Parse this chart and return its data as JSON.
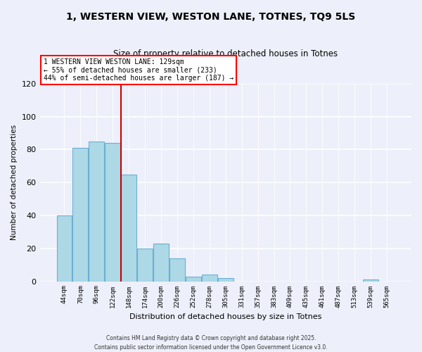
{
  "title_line1": "1, WESTERN VIEW, WESTON LANE, TOTNES, TQ9 5LS",
  "title_line2": "Size of property relative to detached houses in Totnes",
  "xlabel": "Distribution of detached houses by size in Totnes",
  "ylabel": "Number of detached properties",
  "categories": [
    "44sqm",
    "70sqm",
    "96sqm",
    "122sqm",
    "148sqm",
    "174sqm",
    "200sqm",
    "226sqm",
    "252sqm",
    "278sqm",
    "305sqm",
    "331sqm",
    "357sqm",
    "383sqm",
    "409sqm",
    "435sqm",
    "461sqm",
    "487sqm",
    "513sqm",
    "539sqm",
    "565sqm"
  ],
  "values": [
    40,
    81,
    85,
    84,
    65,
    20,
    23,
    14,
    3,
    4,
    2,
    0,
    0,
    0,
    0,
    0,
    0,
    0,
    0,
    1,
    0
  ],
  "bar_color": "#add8e6",
  "bar_edge_color": "#6ab0d4",
  "vline_x_index": 3.5,
  "vline_color": "#cc0000",
  "annotation_line1": "1 WESTERN VIEW WESTON LANE: 129sqm",
  "annotation_line2": "← 55% of detached houses are smaller (233)",
  "annotation_line3": "44% of semi-detached houses are larger (187) →",
  "ylim": [
    0,
    120
  ],
  "yticks": [
    0,
    20,
    40,
    60,
    80,
    100,
    120
  ],
  "footer_line1": "Contains HM Land Registry data © Crown copyright and database right 2025.",
  "footer_line2": "Contains public sector information licensed under the Open Government Licence v3.0.",
  "bg_color": "#edf0fa"
}
